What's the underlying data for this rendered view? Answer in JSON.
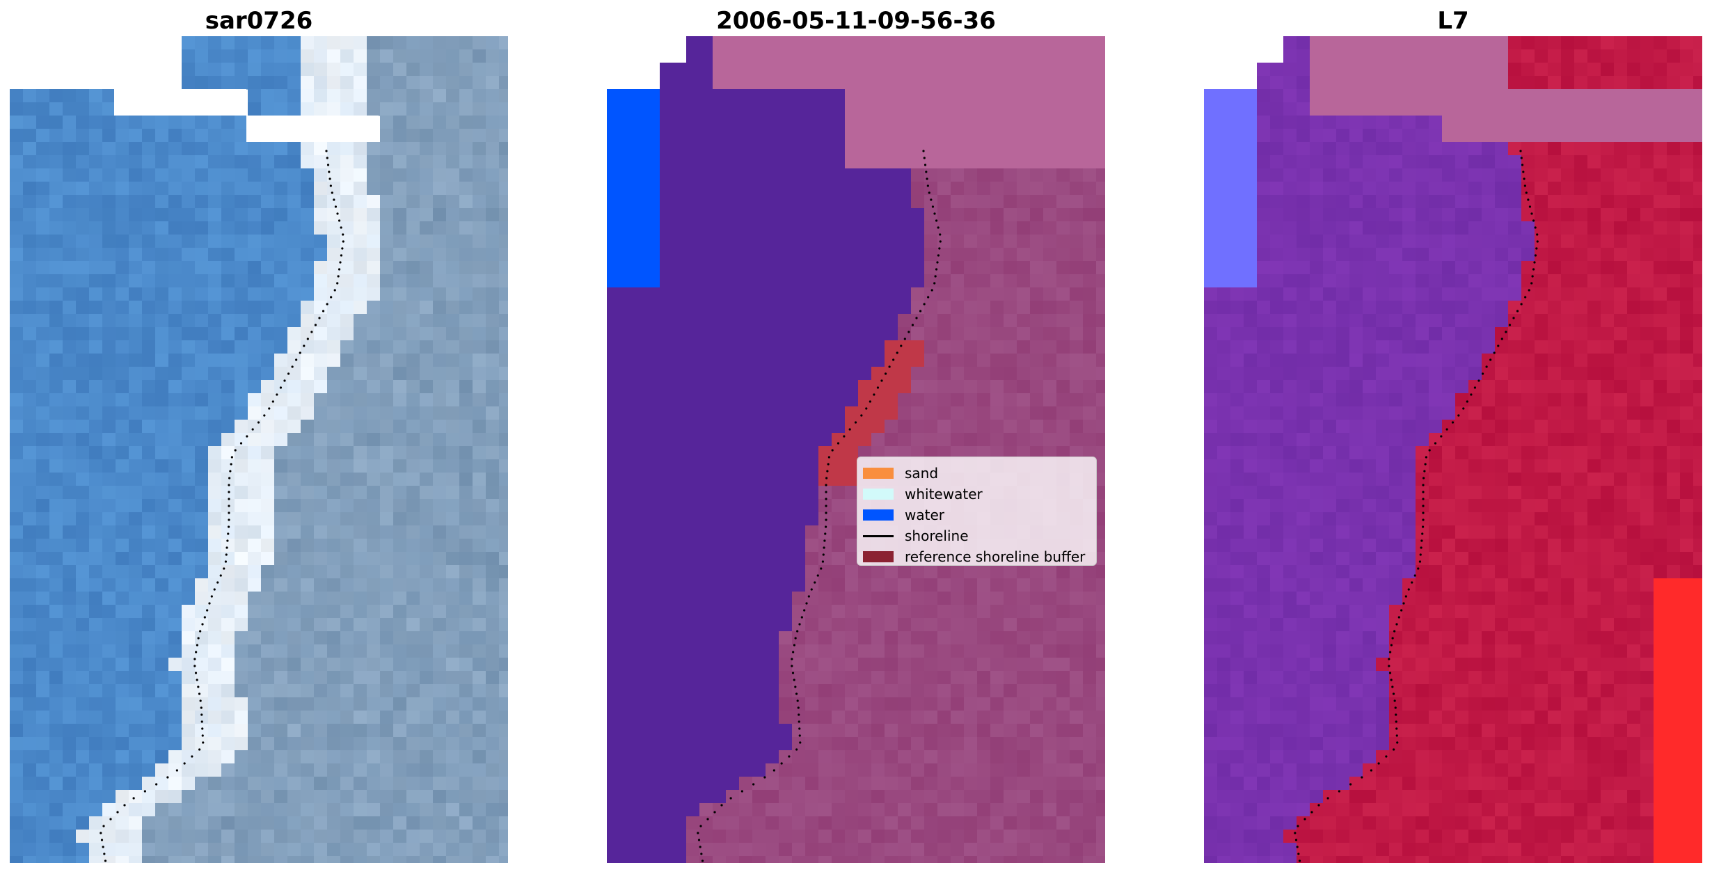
{
  "panels": [
    {
      "title": "sar0726"
    },
    {
      "title": "2006-05-11-09-56-36"
    },
    {
      "title": "L7"
    }
  ],
  "legend": {
    "items": [
      {
        "label": "sand",
        "color": "#f98e3e",
        "kind": "patch"
      },
      {
        "label": "whitewater",
        "color": "#d2fafa",
        "kind": "patch"
      },
      {
        "label": "water",
        "color": "#0055ff",
        "kind": "patch"
      },
      {
        "label": "shoreline",
        "color": "#000000",
        "kind": "line"
      },
      {
        "label": "reference shoreline buffer",
        "color": "#8b2232",
        "kind": "patch"
      }
    ]
  },
  "colors": {
    "rgb_water": "#4a86c8",
    "rgb_foam": "#eef3f8",
    "rgb_land": "#7a98b6",
    "class_water": "#56259a",
    "class_land": "#9a467e",
    "class_cloud": "#b8669a",
    "class_water_patch": "#0055ff",
    "class_buffer": "#c03848",
    "index_water": "#7a35b0",
    "index_land": "#be1745",
    "index_cloud": "#b8669a",
    "index_bright": "#ff2a2a",
    "index_edge": "#7070ff"
  }
}
